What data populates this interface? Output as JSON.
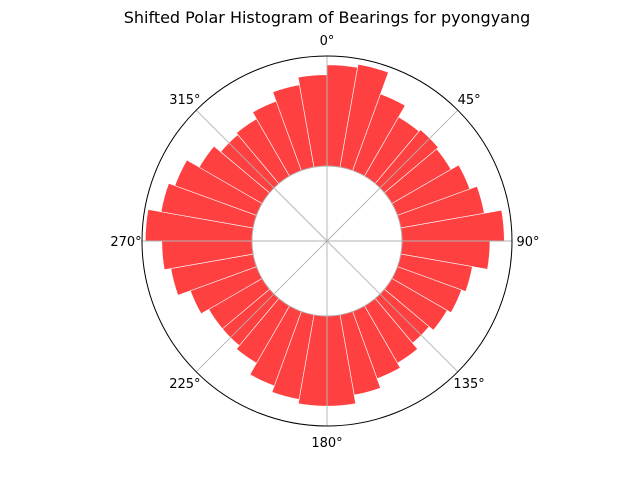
{
  "chart_data": {
    "type": "bar",
    "subtype": "polar-histogram",
    "title": "Shifted Polar Histogram of Bearings for pyongyang",
    "theta_zero_location": "N",
    "theta_direction": "clockwise",
    "bin_width_deg": 10,
    "bar_color": "#ff0000",
    "bar_alpha": 0.75,
    "bar_edge_color": "#ffffff",
    "grid": true,
    "angle_tick_labels": [
      "0°",
      "45°",
      "90°",
      "135°",
      "180°",
      "225°",
      "270°",
      "315°"
    ],
    "bins": [
      {
        "center_deg": 5,
        "value": 0.92
      },
      {
        "center_deg": 15,
        "value": 0.95
      },
      {
        "center_deg": 25,
        "value": 0.74
      },
      {
        "center_deg": 35,
        "value": 0.62
      },
      {
        "center_deg": 45,
        "value": 0.64
      },
      {
        "center_deg": 55,
        "value": 0.62
      },
      {
        "center_deg": 65,
        "value": 0.7
      },
      {
        "center_deg": 75,
        "value": 0.77
      },
      {
        "center_deg": 85,
        "value": 0.93
      },
      {
        "center_deg": 95,
        "value": 0.8
      },
      {
        "center_deg": 105,
        "value": 0.66
      },
      {
        "center_deg": 115,
        "value": 0.62
      },
      {
        "center_deg": 125,
        "value": 0.58
      },
      {
        "center_deg": 135,
        "value": 0.53
      },
      {
        "center_deg": 145,
        "value": 0.6
      },
      {
        "center_deg": 155,
        "value": 0.65
      },
      {
        "center_deg": 165,
        "value": 0.74
      },
      {
        "center_deg": 175,
        "value": 0.82
      },
      {
        "center_deg": 185,
        "value": 0.82
      },
      {
        "center_deg": 195,
        "value": 0.78
      },
      {
        "center_deg": 205,
        "value": 0.72
      },
      {
        "center_deg": 215,
        "value": 0.6
      },
      {
        "center_deg": 225,
        "value": 0.56
      },
      {
        "center_deg": 235,
        "value": 0.56
      },
      {
        "center_deg": 245,
        "value": 0.64
      },
      {
        "center_deg": 255,
        "value": 0.76
      },
      {
        "center_deg": 265,
        "value": 0.82
      },
      {
        "center_deg": 275,
        "value": 0.97
      },
      {
        "center_deg": 285,
        "value": 0.85
      },
      {
        "center_deg": 295,
        "value": 0.79
      },
      {
        "center_deg": 305,
        "value": 0.66
      },
      {
        "center_deg": 315,
        "value": 0.58
      },
      {
        "center_deg": 325,
        "value": 0.6
      },
      {
        "center_deg": 335,
        "value": 0.67
      },
      {
        "center_deg": 345,
        "value": 0.76
      },
      {
        "center_deg": 355,
        "value": 0.83
      }
    ]
  }
}
